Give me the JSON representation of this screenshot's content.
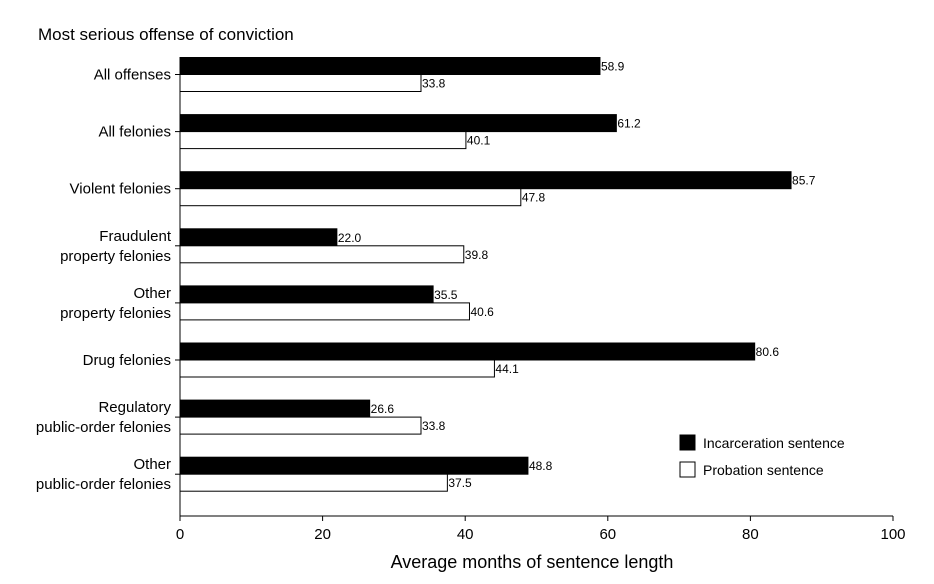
{
  "chart_data": {
    "type": "bar",
    "orientation": "horizontal",
    "ylabel": "Most serious offense of conviction",
    "xlabel": "Average months of sentence length",
    "categories": [
      [
        "All offenses"
      ],
      [
        "All felonies"
      ],
      [
        "Violent felonies"
      ],
      [
        "Fraudulent",
        "property felonies"
      ],
      [
        "Other",
        "property felonies"
      ],
      [
        "Drug felonies"
      ],
      [
        "Regulatory",
        "public-order felonies"
      ],
      [
        "Other",
        "public-order felonies"
      ]
    ],
    "series": [
      {
        "name": "Incarceration sentence",
        "color": "#000000",
        "values": [
          58.9,
          61.2,
          85.7,
          22.0,
          35.5,
          80.6,
          26.6,
          48.8
        ],
        "labels": [
          "58.9",
          "61.2",
          "85.7",
          "22.0",
          "35.5",
          "80.6",
          "26.6",
          "48.8"
        ]
      },
      {
        "name": "Probation sentence",
        "color": "#ffffff",
        "values": [
          33.8,
          40.1,
          47.8,
          39.8,
          40.6,
          44.1,
          33.8,
          37.5
        ],
        "labels": [
          "33.8",
          "40.1",
          "47.8",
          "39.8",
          "40.6",
          "44.1",
          "33.8",
          "37.5"
        ]
      }
    ],
    "xlim": [
      0,
      100
    ],
    "xticks": [
      "0",
      "20",
      "40",
      "60",
      "80",
      "100"
    ],
    "grid": false,
    "legend_position": "bottom-right"
  }
}
